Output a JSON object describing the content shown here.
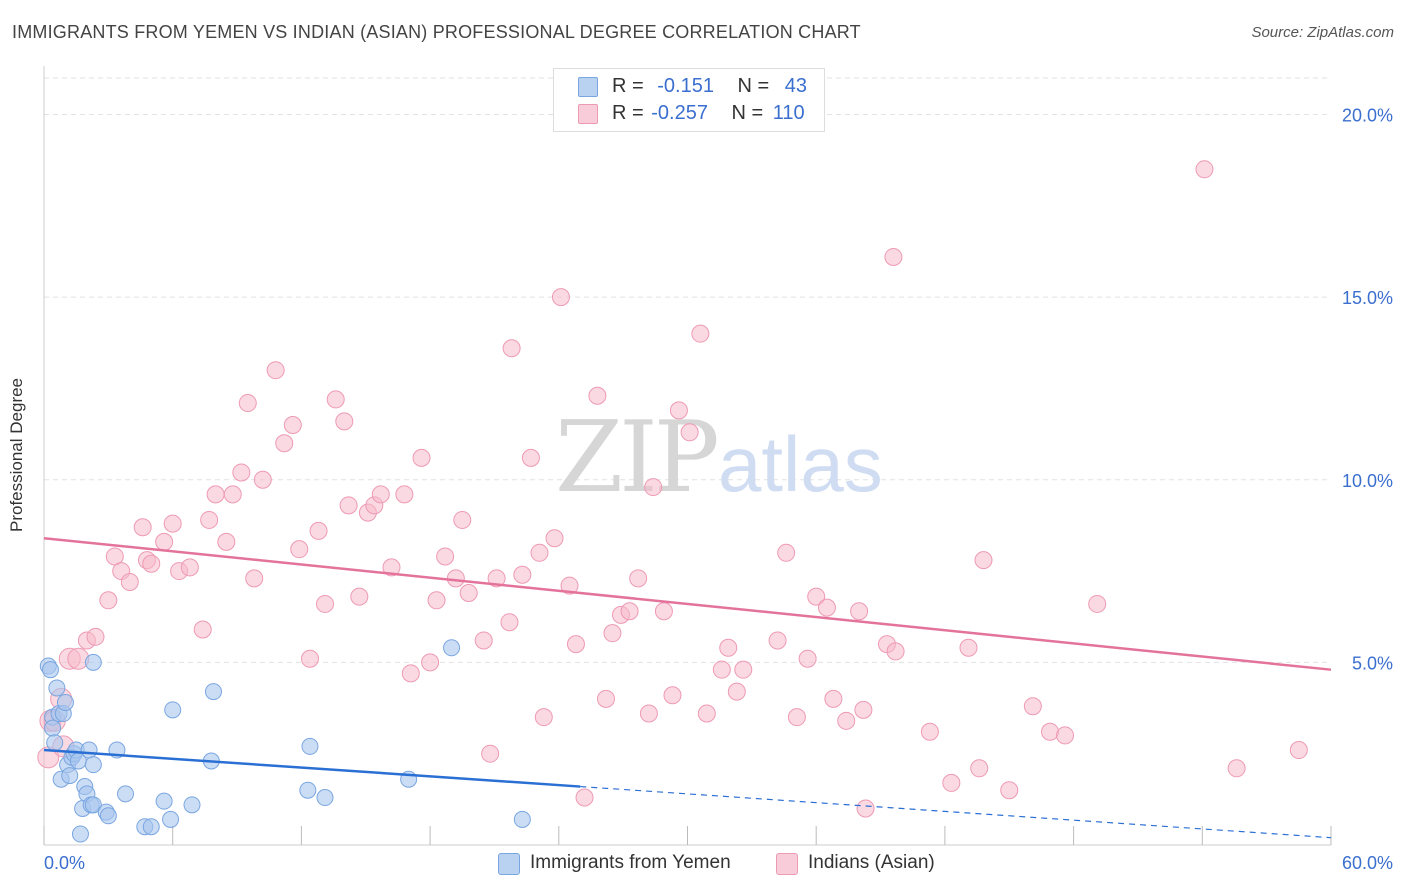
{
  "title": "IMMIGRANTS FROM YEMEN VS INDIAN (ASIAN) PROFESSIONAL DEGREE CORRELATION CHART",
  "source": "Source: ZipAtlas.com",
  "watermark": {
    "zip": "ZIP",
    "atlas": "atlas"
  },
  "legend": {
    "rows": [
      {
        "r_label": "R =",
        "r_value": "-0.151",
        "n_label": "N =",
        "n_value": "43"
      },
      {
        "r_label": "R =",
        "r_value": "-0.257",
        "n_label": "N =",
        "n_value": "110"
      }
    ]
  },
  "bottom_legend": [
    "Immigrants from Yemen",
    "Indians (Asian)"
  ],
  "colors": {
    "blue_fill": "#a9c6ee",
    "blue_stroke": "#7aa6e0",
    "blue_line": "#2a6fd4",
    "pink_fill": "#f5b9cb",
    "pink_stroke": "#ee9ab4",
    "pink_line": "#e3739b",
    "axis_label": "#3b6fcf",
    "grid": "#e2e2e2"
  },
  "chart_data": {
    "type": "scatter",
    "title": "IMMIGRANTS FROM YEMEN VS INDIAN (ASIAN) PROFESSIONAL DEGREE CORRELATION CHART",
    "xlabel": "",
    "ylabel": "Professional Degree",
    "xlim": [
      0,
      60
    ],
    "ylim": [
      0,
      21
    ],
    "x_tick_labels": [
      "0.0%",
      "60.0%"
    ],
    "y_ticks": [
      5,
      10,
      15,
      20
    ],
    "y_tick_labels": [
      "5.0%",
      "10.0%",
      "15.0%",
      "20.0%"
    ],
    "grid": true,
    "legend_position": "top-center",
    "series": [
      {
        "name": "Immigrants from Yemen",
        "R": -0.151,
        "N": 43,
        "trend": {
          "x0": 0,
          "y0": 2.6,
          "x1": 25,
          "y1": 1.6,
          "dashed_to_x": 60,
          "dashed_to_y": 0.2
        },
        "points": [
          [
            0.2,
            4.9
          ],
          [
            0.3,
            4.8
          ],
          [
            0.4,
            3.5
          ],
          [
            0.4,
            3.2
          ],
          [
            0.5,
            2.8
          ],
          [
            0.6,
            4.3
          ],
          [
            0.7,
            3.6
          ],
          [
            0.8,
            1.8
          ],
          [
            0.9,
            3.6
          ],
          [
            1.0,
            3.9
          ],
          [
            1.1,
            2.2
          ],
          [
            1.2,
            1.9
          ],
          [
            1.3,
            2.4
          ],
          [
            1.4,
            2.5
          ],
          [
            1.5,
            2.6
          ],
          [
            1.6,
            2.3
          ],
          [
            1.7,
            0.3
          ],
          [
            1.8,
            1.0
          ],
          [
            1.9,
            1.6
          ],
          [
            2.0,
            1.4
          ],
          [
            2.1,
            2.6
          ],
          [
            2.2,
            1.1
          ],
          [
            2.3,
            1.1
          ],
          [
            2.3,
            2.2
          ],
          [
            2.3,
            5.0
          ],
          [
            2.9,
            0.9
          ],
          [
            3.0,
            0.8
          ],
          [
            3.4,
            2.6
          ],
          [
            3.8,
            1.4
          ],
          [
            4.7,
            0.5
          ],
          [
            5.0,
            0.5
          ],
          [
            5.6,
            1.2
          ],
          [
            5.9,
            0.7
          ],
          [
            6.0,
            3.7
          ],
          [
            6.9,
            1.1
          ],
          [
            7.8,
            2.3
          ],
          [
            7.9,
            4.2
          ],
          [
            12.3,
            1.5
          ],
          [
            12.4,
            2.7
          ],
          [
            13.1,
            1.3
          ],
          [
            17.0,
            1.8
          ],
          [
            19.0,
            5.4
          ],
          [
            22.3,
            0.7
          ]
        ]
      },
      {
        "name": "Indians (Asian)",
        "R": -0.257,
        "N": 110,
        "trend": {
          "x0": 0,
          "y0": 8.4,
          "x1": 60,
          "y1": 4.8
        },
        "points": [
          [
            0.2,
            2.4
          ],
          [
            0.3,
            3.4
          ],
          [
            0.5,
            3.4
          ],
          [
            0.8,
            4.0
          ],
          [
            0.9,
            2.7
          ],
          [
            1.2,
            5.1
          ],
          [
            1.6,
            5.1
          ],
          [
            2.0,
            5.6
          ],
          [
            2.4,
            5.7
          ],
          [
            3.0,
            6.7
          ],
          [
            3.3,
            7.9
          ],
          [
            3.6,
            7.5
          ],
          [
            4.0,
            7.2
          ],
          [
            4.6,
            8.7
          ],
          [
            4.8,
            7.8
          ],
          [
            5.0,
            7.7
          ],
          [
            5.6,
            8.3
          ],
          [
            6.0,
            8.8
          ],
          [
            6.3,
            7.5
          ],
          [
            6.8,
            7.6
          ],
          [
            7.4,
            5.9
          ],
          [
            7.7,
            8.9
          ],
          [
            8.0,
            9.6
          ],
          [
            8.5,
            8.3
          ],
          [
            8.8,
            9.6
          ],
          [
            9.2,
            10.2
          ],
          [
            9.5,
            12.1
          ],
          [
            9.8,
            7.3
          ],
          [
            10.2,
            10.0
          ],
          [
            10.8,
            13.0
          ],
          [
            11.2,
            11.0
          ],
          [
            11.6,
            11.5
          ],
          [
            11.9,
            8.1
          ],
          [
            12.4,
            5.1
          ],
          [
            12.8,
            8.6
          ],
          [
            13.1,
            6.6
          ],
          [
            13.6,
            12.2
          ],
          [
            14.0,
            11.6
          ],
          [
            14.2,
            9.3
          ],
          [
            14.7,
            6.8
          ],
          [
            15.1,
            9.1
          ],
          [
            15.4,
            9.3
          ],
          [
            15.7,
            9.6
          ],
          [
            16.2,
            7.6
          ],
          [
            16.8,
            9.6
          ],
          [
            17.1,
            4.7
          ],
          [
            17.6,
            10.6
          ],
          [
            18.0,
            5.0
          ],
          [
            18.3,
            6.7
          ],
          [
            18.7,
            7.9
          ],
          [
            19.2,
            7.3
          ],
          [
            19.5,
            8.9
          ],
          [
            19.8,
            6.9
          ],
          [
            20.5,
            5.6
          ],
          [
            20.8,
            2.5
          ],
          [
            21.1,
            7.3
          ],
          [
            21.7,
            6.1
          ],
          [
            21.8,
            13.6
          ],
          [
            22.3,
            7.4
          ],
          [
            22.7,
            10.6
          ],
          [
            23.1,
            8.0
          ],
          [
            23.3,
            3.5
          ],
          [
            23.8,
            8.4
          ],
          [
            24.1,
            15.0
          ],
          [
            24.5,
            7.1
          ],
          [
            24.8,
            5.5
          ],
          [
            25.2,
            1.3
          ],
          [
            25.8,
            12.3
          ],
          [
            26.2,
            4.0
          ],
          [
            26.5,
            5.8
          ],
          [
            26.9,
            6.3
          ],
          [
            27.3,
            6.4
          ],
          [
            27.7,
            7.3
          ],
          [
            28.2,
            3.6
          ],
          [
            28.4,
            9.8
          ],
          [
            28.9,
            6.4
          ],
          [
            29.3,
            4.1
          ],
          [
            29.6,
            11.9
          ],
          [
            30.1,
            11.3
          ],
          [
            30.6,
            14.0
          ],
          [
            30.9,
            3.6
          ],
          [
            31.6,
            4.8
          ],
          [
            31.9,
            5.4
          ],
          [
            32.3,
            4.2
          ],
          [
            32.6,
            4.8
          ],
          [
            34.2,
            5.6
          ],
          [
            34.6,
            8.0
          ],
          [
            35.1,
            3.5
          ],
          [
            35.6,
            5.1
          ],
          [
            36.0,
            6.8
          ],
          [
            36.5,
            6.5
          ],
          [
            36.8,
            4.0
          ],
          [
            37.4,
            3.4
          ],
          [
            38.0,
            6.4
          ],
          [
            38.2,
            3.7
          ],
          [
            38.3,
            1.0
          ],
          [
            39.3,
            5.5
          ],
          [
            39.6,
            16.1
          ],
          [
            39.7,
            5.3
          ],
          [
            41.3,
            3.1
          ],
          [
            42.3,
            1.7
          ],
          [
            43.1,
            5.4
          ],
          [
            43.6,
            2.1
          ],
          [
            43.8,
            7.8
          ],
          [
            45.0,
            1.5
          ],
          [
            46.1,
            3.8
          ],
          [
            46.9,
            3.1
          ],
          [
            47.6,
            3.0
          ],
          [
            49.1,
            6.6
          ],
          [
            54.1,
            18.5
          ],
          [
            55.6,
            2.1
          ],
          [
            58.5,
            2.6
          ]
        ]
      }
    ]
  }
}
